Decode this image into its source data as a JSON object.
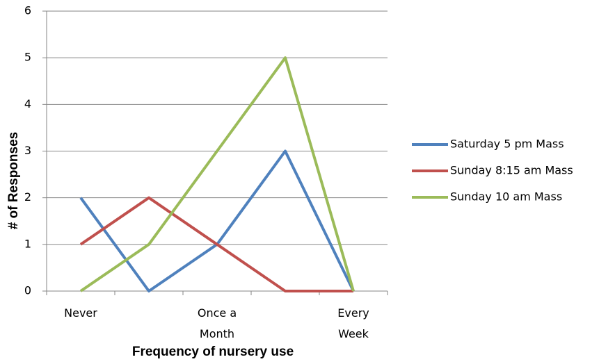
{
  "chart_data": {
    "type": "line",
    "x_label": "Frequency of nursery use",
    "y_label": "# of Responses",
    "categories": [
      "Never",
      null,
      "Once a Month",
      null,
      "Every Week"
    ],
    "series": [
      {
        "name": "Saturday 5 pm Mass",
        "color": "#4f81bd",
        "values": [
          2,
          0,
          1,
          3,
          0
        ]
      },
      {
        "name": "Sunday 8:15 am Mass",
        "color": "#c0504d",
        "values": [
          1,
          2,
          1,
          0,
          0
        ]
      },
      {
        "name": "Sunday 10 am Mass",
        "color": "#9bbb59",
        "values": [
          0,
          1,
          3,
          5,
          0
        ]
      }
    ],
    "ylim": [
      0,
      6
    ],
    "yticks": [
      0,
      1,
      2,
      3,
      4,
      5,
      6
    ],
    "grid": true,
    "legend": "right"
  }
}
